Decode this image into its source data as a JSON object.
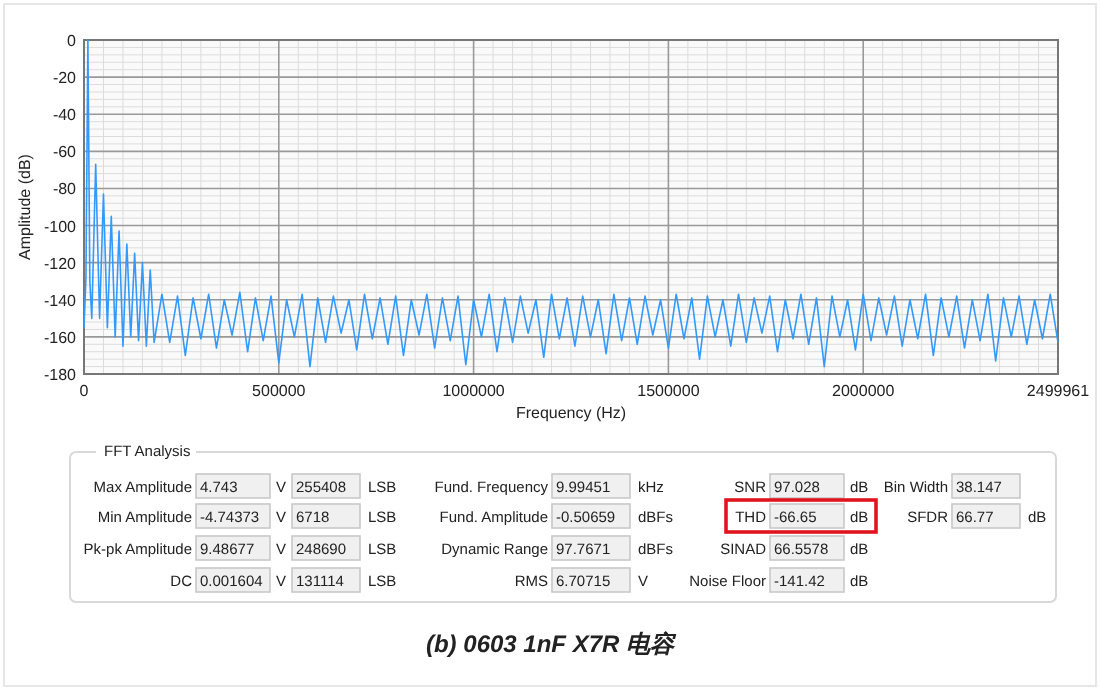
{
  "chart_data": [
    {
      "type": "line",
      "xlabel": "Frequency (Hz)",
      "ylabel": "Amplitude (dB)",
      "xlim": [
        0,
        2499961
      ],
      "ylim": [
        -180,
        0
      ],
      "xticks": [
        0,
        500000,
        1000000,
        1500000,
        2000000,
        2499961
      ],
      "yticks": [
        -180,
        -160,
        -140,
        -120,
        -100,
        -80,
        -60,
        -40,
        -20,
        0
      ],
      "grid": true,
      "marker": "none",
      "line_style": "solid",
      "series": [
        {
          "color": "#3399ff",
          "x": [
            0,
            5000,
            10000,
            15000,
            20000,
            30000,
            40000,
            50000,
            60000,
            70000,
            80000,
            90000,
            100000,
            110000,
            120000,
            130000,
            140000,
            150000,
            160000,
            170000,
            180000,
            200000,
            220000,
            240000,
            260000,
            280000,
            300000,
            320000,
            340000,
            360000,
            380000,
            400000,
            420000,
            440000,
            460000,
            480000,
            500000,
            520000,
            540000,
            560000,
            580000,
            600000,
            620000,
            640000,
            660000,
            680000,
            700000,
            720000,
            740000,
            760000,
            780000,
            800000,
            820000,
            840000,
            860000,
            880000,
            900000,
            920000,
            940000,
            960000,
            980000,
            1000000,
            1020000,
            1040000,
            1060000,
            1080000,
            1100000,
            1120000,
            1140000,
            1160000,
            1180000,
            1200000,
            1220000,
            1240000,
            1260000,
            1280000,
            1300000,
            1320000,
            1340000,
            1360000,
            1380000,
            1400000,
            1420000,
            1440000,
            1460000,
            1480000,
            1500000,
            1520000,
            1540000,
            1560000,
            1580000,
            1600000,
            1620000,
            1640000,
            1660000,
            1680000,
            1700000,
            1720000,
            1740000,
            1760000,
            1780000,
            1800000,
            1820000,
            1840000,
            1860000,
            1880000,
            1900000,
            1920000,
            1940000,
            1960000,
            1980000,
            2000000,
            2020000,
            2040000,
            2060000,
            2080000,
            2100000,
            2120000,
            2140000,
            2160000,
            2180000,
            2200000,
            2220000,
            2240000,
            2260000,
            2280000,
            2300000,
            2320000,
            2340000,
            2360000,
            2380000,
            2400000,
            2420000,
            2440000,
            2460000,
            2480000,
            2499961
          ],
          "values": [
            -155,
            -128,
            0,
            -130,
            -150,
            -67,
            -150,
            -83,
            -155,
            -95,
            -160,
            -103,
            -165,
            -110,
            -160,
            -115,
            -162,
            -120,
            -165,
            -124,
            -163,
            -137,
            -163,
            -138,
            -170,
            -139,
            -161,
            -137,
            -166,
            -140,
            -159,
            -136,
            -168,
            -139,
            -162,
            -138,
            -174,
            -140,
            -160,
            -137,
            -176,
            -139,
            -163,
            -138,
            -158,
            -140,
            -167,
            -137,
            -161,
            -139,
            -164,
            -138,
            -170,
            -140,
            -159,
            -137,
            -166,
            -139,
            -162,
            -138,
            -175,
            -140,
            -160,
            -137,
            -168,
            -139,
            -163,
            -138,
            -158,
            -140,
            -171,
            -137,
            -161,
            -139,
            -165,
            -138,
            -160,
            -140,
            -169,
            -137,
            -162,
            -139,
            -164,
            -138,
            -159,
            -140,
            -166,
            -137,
            -161,
            -139,
            -172,
            -138,
            -160,
            -140,
            -165,
            -137,
            -163,
            -139,
            -158,
            -138,
            -168,
            -140,
            -161,
            -137,
            -164,
            -139,
            -176,
            -138,
            -160,
            -140,
            -167,
            -137,
            -162,
            -139,
            -159,
            -138,
            -165,
            -140,
            -161,
            -137,
            -170,
            -139,
            -160,
            -138,
            -166,
            -140,
            -162,
            -137,
            -173,
            -139,
            -160,
            -138,
            -164,
            -140,
            -161,
            -137,
            -163
          ]
        }
      ]
    },
    {
      "type": "other",
      "title": "FFT Analysis",
      "annotations": [
        "Max Amplitude",
        "4.743",
        "V",
        "255408",
        "LSB",
        "Fund. Frequency",
        "9.99451",
        "kHz",
        "SNR",
        "97.028",
        "dB",
        "Bin Width",
        "38.147",
        "Min Amplitude",
        "-4.74373",
        "V",
        "6718",
        "LSB",
        "Fund. Amplitude",
        "-0.50659",
        "dBFs",
        "THD",
        "-66.65",
        "dB",
        "SFDR",
        "66.77",
        "dB",
        "Pk-pk Amplitude",
        "9.48677",
        "V",
        "248690",
        "LSB",
        "Dynamic Range",
        "97.7671",
        "dBFs",
        "SINAD",
        "66.5578",
        "dB",
        "DC",
        "0.001604",
        "V",
        "131114",
        "LSB",
        "RMS",
        "6.70715",
        "V",
        "Noise Floor",
        "-141.42",
        "dB",
        "(b) 0603 1nF X7R 电容"
      ]
    }
  ]
}
